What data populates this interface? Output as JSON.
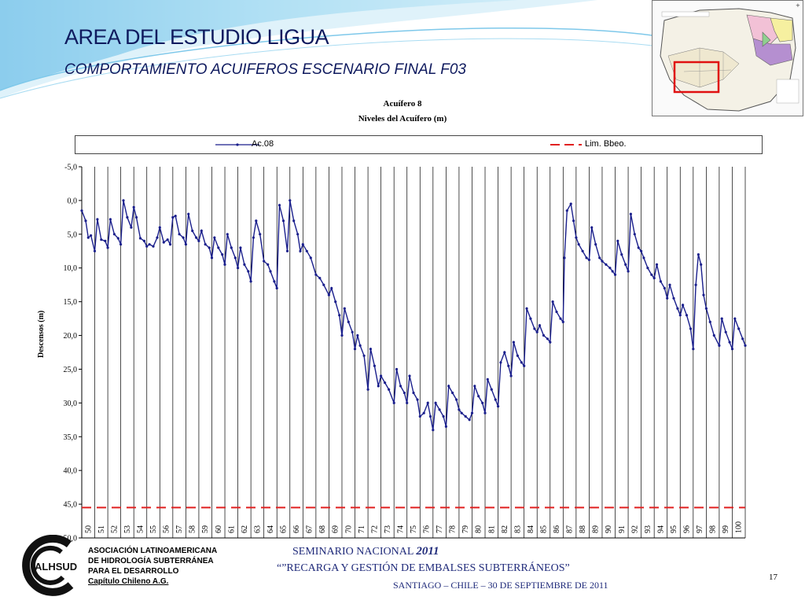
{
  "slide": {
    "title": "AREA DEL ESTUDIO LIGUA",
    "subtitle": "COMPORTAMIENTO ACUIFEROS ESCENARIO FINAL F03",
    "page_number": "17"
  },
  "footer": {
    "org_line1": "ASOCIACIÓN LATINOAMERICANA",
    "org_line2": "DE HIDROLOGÍA SUBTERRÁNEA",
    "org_line3": "PARA EL DESARROLLO",
    "org_line4": "Capítulo Chileno A.G.",
    "logo_text": "ALHSUD",
    "seminar_prefix": "SEMINARIO NACIONAL",
    "seminar_year": "2011",
    "seminar_theme": "“”RECARGA Y GESTIÓN DE EMBALSES SUBTERRÁNEOS”",
    "seminar_place": "SANTIAGO – CHILE – 30 DE SEPTIEMBRE DE 2011"
  },
  "colors": {
    "title": "#0f1a5e",
    "series": "#1a1f8c",
    "limit": "#e02020",
    "map_highlight": "#e01010"
  },
  "chart_data": {
    "type": "line",
    "title": "Acuífero 8",
    "subtitle": "Niveles del Acuífero (m)",
    "xlabel": "",
    "ylabel": "Descensos (m)",
    "ylim": [
      -5,
      50
    ],
    "y_inverted": true,
    "yticks": [
      "-5,0",
      "0,0",
      "5,0",
      "10,0",
      "15,0",
      "20,0",
      "25,0",
      "30,0",
      "35,0",
      "40,0",
      "45,0",
      "50,0"
    ],
    "xlim": [
      50,
      101
    ],
    "xticks": [
      "50",
      "51",
      "52",
      "53",
      "54",
      "55",
      "56",
      "57",
      "58",
      "59",
      "60",
      "61",
      "62",
      "63",
      "64",
      "65",
      "66",
      "67",
      "68",
      "69",
      "70",
      "71",
      "72",
      "73",
      "74",
      "75",
      "76",
      "77",
      "78",
      "79",
      "80",
      "81",
      "82",
      "83",
      "84",
      "85",
      "86",
      "87",
      "88",
      "89",
      "90",
      "91",
      "92",
      "93",
      "94",
      "95",
      "96",
      "97",
      "98",
      "99",
      "100"
    ],
    "grid": "vertical",
    "legend_position": "top",
    "series": [
      {
        "name": "Ac.08",
        "style": "line-markers",
        "points": [
          [
            50.0,
            1.5
          ],
          [
            50.3,
            3.0
          ],
          [
            50.5,
            5.5
          ],
          [
            50.7,
            5.2
          ],
          [
            51.0,
            7.5
          ],
          [
            51.2,
            2.8
          ],
          [
            51.5,
            5.8
          ],
          [
            51.8,
            6.0
          ],
          [
            52.0,
            7.0
          ],
          [
            52.2,
            2.8
          ],
          [
            52.5,
            5.0
          ],
          [
            52.8,
            5.6
          ],
          [
            53.0,
            6.5
          ],
          [
            53.2,
            0.0
          ],
          [
            53.5,
            2.5
          ],
          [
            53.8,
            4.0
          ],
          [
            54.0,
            1.0
          ],
          [
            54.2,
            2.5
          ],
          [
            54.5,
            5.6
          ],
          [
            54.8,
            6.0
          ],
          [
            55.0,
            6.8
          ],
          [
            55.2,
            6.5
          ],
          [
            55.5,
            6.8
          ],
          [
            55.8,
            5.5
          ],
          [
            56.0,
            4.0
          ],
          [
            56.3,
            6.2
          ],
          [
            56.6,
            5.8
          ],
          [
            56.8,
            6.5
          ],
          [
            57.0,
            2.5
          ],
          [
            57.2,
            2.3
          ],
          [
            57.5,
            5.0
          ],
          [
            57.8,
            5.5
          ],
          [
            58.0,
            6.5
          ],
          [
            58.2,
            2.0
          ],
          [
            58.5,
            4.5
          ],
          [
            58.8,
            5.5
          ],
          [
            59.0,
            6.0
          ],
          [
            59.2,
            4.5
          ],
          [
            59.5,
            6.5
          ],
          [
            59.8,
            7.0
          ],
          [
            60.0,
            8.5
          ],
          [
            60.2,
            5.5
          ],
          [
            60.5,
            7.0
          ],
          [
            60.8,
            8.0
          ],
          [
            61.0,
            9.5
          ],
          [
            61.2,
            5.0
          ],
          [
            61.5,
            7.0
          ],
          [
            61.8,
            8.5
          ],
          [
            62.0,
            10.0
          ],
          [
            62.2,
            7.0
          ],
          [
            62.5,
            9.5
          ],
          [
            62.8,
            10.5
          ],
          [
            63.0,
            12.0
          ],
          [
            63.2,
            5.5
          ],
          [
            63.4,
            3.0
          ],
          [
            63.7,
            5.0
          ],
          [
            64.0,
            9.0
          ],
          [
            64.3,
            9.5
          ],
          [
            64.5,
            10.5
          ],
          [
            64.8,
            12.0
          ],
          [
            65.0,
            13.0
          ],
          [
            65.2,
            0.7
          ],
          [
            65.5,
            3.0
          ],
          [
            65.8,
            7.5
          ],
          [
            66.0,
            0.0
          ],
          [
            66.3,
            3.0
          ],
          [
            66.6,
            5.0
          ],
          [
            66.8,
            7.5
          ],
          [
            67.0,
            6.5
          ],
          [
            67.3,
            7.5
          ],
          [
            67.6,
            8.5
          ],
          [
            68.0,
            11.0
          ],
          [
            68.3,
            11.5
          ],
          [
            68.6,
            12.5
          ],
          [
            69.0,
            14.0
          ],
          [
            69.2,
            13.0
          ],
          [
            69.5,
            15.0
          ],
          [
            69.8,
            17.0
          ],
          [
            70.0,
            20.0
          ],
          [
            70.2,
            16.0
          ],
          [
            70.5,
            18.0
          ],
          [
            70.8,
            19.5
          ],
          [
            71.0,
            22.0
          ],
          [
            71.2,
            20.0
          ],
          [
            71.4,
            21.5
          ],
          [
            71.7,
            23.0
          ],
          [
            72.0,
            28.0
          ],
          [
            72.2,
            22.0
          ],
          [
            72.5,
            24.5
          ],
          [
            72.8,
            27.5
          ],
          [
            73.0,
            26.0
          ],
          [
            73.3,
            27.0
          ],
          [
            73.6,
            28.0
          ],
          [
            74.0,
            30.0
          ],
          [
            74.2,
            25.0
          ],
          [
            74.5,
            27.5
          ],
          [
            74.8,
            28.5
          ],
          [
            75.0,
            30.0
          ],
          [
            75.2,
            26.0
          ],
          [
            75.5,
            28.5
          ],
          [
            75.8,
            29.5
          ],
          [
            76.0,
            32.0
          ],
          [
            76.3,
            31.5
          ],
          [
            76.6,
            30.0
          ],
          [
            76.8,
            32.0
          ],
          [
            77.0,
            34.0
          ],
          [
            77.2,
            30.0
          ],
          [
            77.5,
            31.0
          ],
          [
            77.8,
            32.0
          ],
          [
            78.0,
            33.5
          ],
          [
            78.2,
            27.5
          ],
          [
            78.5,
            28.5
          ],
          [
            78.8,
            29.5
          ],
          [
            79.0,
            31.0
          ],
          [
            79.2,
            31.5
          ],
          [
            79.5,
            32.0
          ],
          [
            79.8,
            32.5
          ],
          [
            80.0,
            31.5
          ],
          [
            80.2,
            27.5
          ],
          [
            80.5,
            29.0
          ],
          [
            80.8,
            30.0
          ],
          [
            81.0,
            31.5
          ],
          [
            81.2,
            26.5
          ],
          [
            81.5,
            28.0
          ],
          [
            81.8,
            29.5
          ],
          [
            82.0,
            30.5
          ],
          [
            82.2,
            24.0
          ],
          [
            82.5,
            22.5
          ],
          [
            82.8,
            24.5
          ],
          [
            83.0,
            26.0
          ],
          [
            83.2,
            21.0
          ],
          [
            83.5,
            23.0
          ],
          [
            83.8,
            24.0
          ],
          [
            84.0,
            24.5
          ],
          [
            84.2,
            16.0
          ],
          [
            84.5,
            17.5
          ],
          [
            84.8,
            19.0
          ],
          [
            85.0,
            19.5
          ],
          [
            85.2,
            18.5
          ],
          [
            85.5,
            20.0
          ],
          [
            85.8,
            20.5
          ],
          [
            86.0,
            21.0
          ],
          [
            86.2,
            15.0
          ],
          [
            86.5,
            16.5
          ],
          [
            86.8,
            17.5
          ],
          [
            87.0,
            18.0
          ],
          [
            87.1,
            8.5
          ],
          [
            87.3,
            1.5
          ],
          [
            87.6,
            0.5
          ],
          [
            87.8,
            3.0
          ],
          [
            88.0,
            5.5
          ],
          [
            88.2,
            6.5
          ],
          [
            88.5,
            7.5
          ],
          [
            88.8,
            8.5
          ],
          [
            89.0,
            8.8
          ],
          [
            89.2,
            4.0
          ],
          [
            89.5,
            6.5
          ],
          [
            89.8,
            8.5
          ],
          [
            90.0,
            9.0
          ],
          [
            90.3,
            9.5
          ],
          [
            90.6,
            10.0
          ],
          [
            90.8,
            10.5
          ],
          [
            91.0,
            11.0
          ],
          [
            91.2,
            6.0
          ],
          [
            91.5,
            8.0
          ],
          [
            91.8,
            9.5
          ],
          [
            92.0,
            10.5
          ],
          [
            92.2,
            2.0
          ],
          [
            92.5,
            5.0
          ],
          [
            92.8,
            7.0
          ],
          [
            93.0,
            7.5
          ],
          [
            93.2,
            8.5
          ],
          [
            93.5,
            10.0
          ],
          [
            93.8,
            11.0
          ],
          [
            94.0,
            11.5
          ],
          [
            94.2,
            9.5
          ],
          [
            94.5,
            12.0
          ],
          [
            94.8,
            13.0
          ],
          [
            95.0,
            14.5
          ],
          [
            95.2,
            12.5
          ],
          [
            95.5,
            14.5
          ],
          [
            95.8,
            16.0
          ],
          [
            96.0,
            17.0
          ],
          [
            96.2,
            15.5
          ],
          [
            96.5,
            17.0
          ],
          [
            96.8,
            19.0
          ],
          [
            97.0,
            22.0
          ],
          [
            97.2,
            12.5
          ],
          [
            97.4,
            8.0
          ],
          [
            97.6,
            9.5
          ],
          [
            97.8,
            14.0
          ],
          [
            98.0,
            16.0
          ],
          [
            98.3,
            18.0
          ],
          [
            98.6,
            20.0
          ],
          [
            99.0,
            21.5
          ],
          [
            99.2,
            17.5
          ],
          [
            99.5,
            19.5
          ],
          [
            99.8,
            21.0
          ],
          [
            100.0,
            22.0
          ],
          [
            100.2,
            17.5
          ],
          [
            100.5,
            19.0
          ],
          [
            100.8,
            20.5
          ],
          [
            101.0,
            21.5
          ]
        ]
      },
      {
        "name": "Lim. Bbeo.",
        "style": "dashed",
        "y": 45.5
      }
    ]
  }
}
